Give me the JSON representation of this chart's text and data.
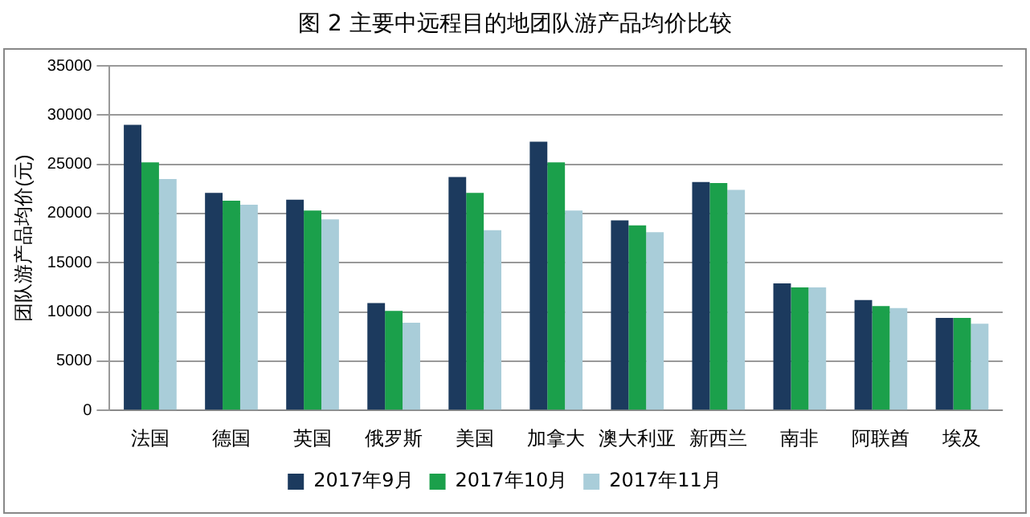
{
  "chart_data": {
    "type": "bar",
    "title": "图 2 主要中远程目的地团队游产品均价比较",
    "ylabel": "团队游产品均价(元)",
    "categories": [
      "法国",
      "德国",
      "英国",
      "俄罗斯",
      "美国",
      "加拿大",
      "澳大利亚",
      "新西兰",
      "南非",
      "阿联酋",
      "埃及"
    ],
    "series": [
      {
        "name": "2017年9月",
        "color": "#1c3a5e",
        "values": [
          29000,
          22100,
          21400,
          10900,
          23700,
          27300,
          19300,
          23200,
          12900,
          11200,
          9400
        ]
      },
      {
        "name": "2017年10月",
        "color": "#1ba04b",
        "values": [
          25200,
          21300,
          20300,
          10100,
          22100,
          25200,
          18800,
          23100,
          12500,
          10600,
          9400
        ]
      },
      {
        "name": "2017年11月",
        "color": "#a9cdd9",
        "values": [
          23500,
          20900,
          19400,
          8900,
          18300,
          20300,
          18100,
          22400,
          12500,
          10400,
          8800
        ]
      }
    ],
    "ylim": [
      0,
      35000
    ],
    "yticks": [
      0,
      5000,
      10000,
      15000,
      20000,
      25000,
      30000,
      35000
    ],
    "grid": "y",
    "legend": "bottom"
  }
}
